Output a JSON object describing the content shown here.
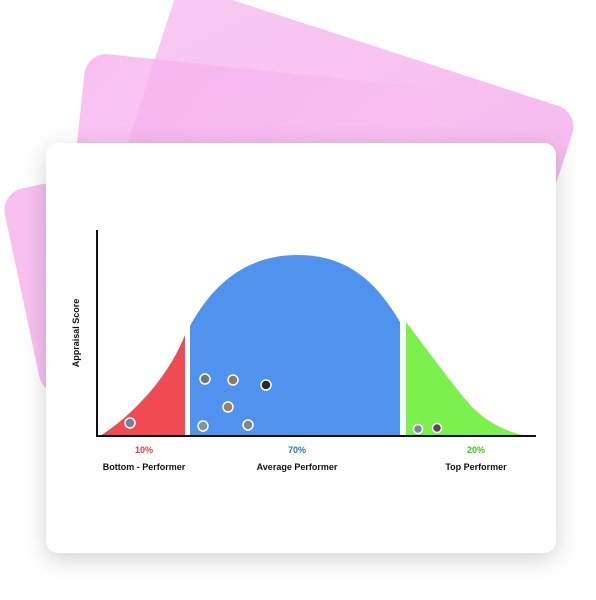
{
  "chart_data": {
    "type": "area",
    "ylabel": "Appraisal Score",
    "segments": [
      {
        "name": "Bottom - Performer",
        "percent": "10%",
        "color": "#f04a52",
        "pct_color": "#e23a45"
      },
      {
        "name": "Average Performer",
        "percent": "70%",
        "color": "#4f93ef",
        "pct_color": "#2f6fcf"
      },
      {
        "name": "Top Performer",
        "percent": "20%",
        "color": "#7cf04c",
        "pct_color": "#36c21f"
      }
    ],
    "grid": false
  },
  "colors": {
    "axis": "#111111",
    "card_background": "#ffffff",
    "decor_pink": "#f6b5ef"
  }
}
